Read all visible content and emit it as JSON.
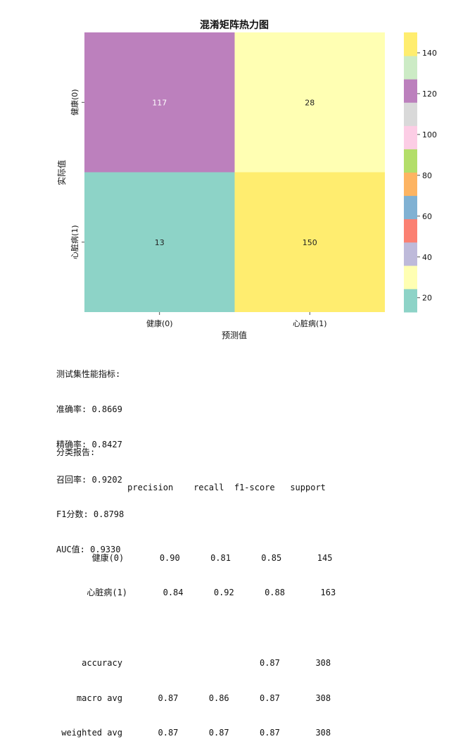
{
  "chart_data": {
    "type": "heatmap",
    "title": "混淆矩阵热力图",
    "xlabel": "预测值",
    "ylabel": "实际值",
    "x_categories": [
      "健康(0)",
      "心脏病(1)"
    ],
    "y_categories": [
      "健康(0)",
      "心脏病(1)"
    ],
    "values": [
      [
        117,
        28
      ],
      [
        13,
        150
      ]
    ],
    "colorbar": {
      "range": [
        13,
        150
      ],
      "ticks": [
        20,
        40,
        60,
        80,
        100,
        120,
        140
      ],
      "colormap": "Set3",
      "colors": [
        "#8dd3c7",
        "#ffffb3",
        "#bebada",
        "#fb8072",
        "#80b1d3",
        "#fdb462",
        "#b3de69",
        "#fccde5",
        "#d9d9d9",
        "#bc80bd",
        "#ccebc5",
        "#ffed6f"
      ]
    }
  },
  "metrics": {
    "heading": "测试集性能指标:",
    "lines": [
      "准确率: 0.8669",
      "精确率: 0.8427",
      "召回率: 0.9202",
      "F1分数: 0.8798",
      "AUC值: 0.9330"
    ]
  },
  "report": {
    "heading": "分类报告:",
    "header": "              precision    recall  f1-score   support",
    "rows": [
      "",
      "       健康(0)       0.90      0.81      0.85       145",
      "      心脏病(1)       0.84      0.92      0.88       163",
      "",
      "     accuracy                           0.87       308",
      "    macro avg       0.87      0.86      0.87       308",
      " weighted avg       0.87      0.87      0.87       308"
    ]
  }
}
